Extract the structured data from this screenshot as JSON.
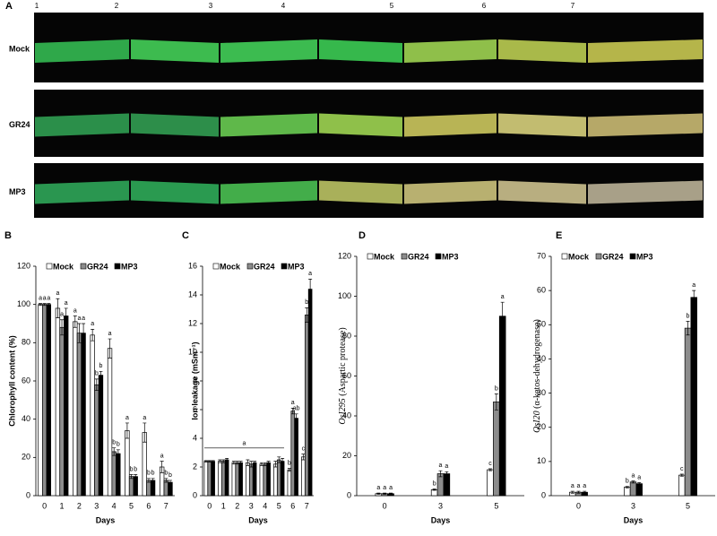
{
  "photo_panel": {
    "panel_label": "A",
    "columns": [
      "1",
      "2",
      "3",
      "4",
      "5",
      "6",
      "7"
    ],
    "rows": [
      "Mock",
      "GR24",
      "MP3"
    ]
  },
  "chart_data": [
    {
      "type": "bar",
      "panel_label": "B",
      "ylabel": "Chlorophyll content (%)",
      "xlabel": "Days",
      "categories": [
        "0",
        "1",
        "2",
        "3",
        "4",
        "5",
        "6",
        "7"
      ],
      "series": [
        {
          "name": "Mock",
          "color": "#ffffff",
          "values": [
            100,
            98,
            91,
            84,
            77,
            34,
            33,
            15
          ],
          "errors": [
            0.5,
            5,
            3,
            3,
            5,
            4,
            5,
            3
          ],
          "letters": [
            "a",
            "a",
            "a",
            "a",
            "a",
            "a",
            "a",
            "a"
          ]
        },
        {
          "name": "GR24",
          "color": "#8c8c8c",
          "values": [
            100,
            88,
            85,
            58,
            23,
            10,
            8,
            8
          ],
          "errors": [
            0.5,
            4,
            5,
            3,
            2,
            1,
            1,
            1
          ],
          "letters": [
            "a",
            "a",
            "a",
            "b",
            "b",
            "b",
            "b",
            "b"
          ]
        },
        {
          "name": "MP3",
          "color": "#000000",
          "values": [
            100,
            94,
            85,
            63,
            22,
            10,
            8,
            7
          ],
          "errors": [
            0.5,
            4,
            5,
            2,
            2,
            1,
            1,
            1
          ],
          "letters": [
            "a",
            "a",
            "a",
            "b",
            "b",
            "b",
            "b",
            "b"
          ]
        }
      ],
      "ylim": [
        0,
        120
      ],
      "yticks": [
        0,
        20,
        40,
        60,
        80,
        100,
        120
      ],
      "legend": "top-left"
    },
    {
      "type": "bar",
      "panel_label": "C",
      "ylabel": "Ion leakage (mSm⁻¹)",
      "xlabel": "Days",
      "categories": [
        "0",
        "1",
        "2",
        "3",
        "4",
        "5",
        "6",
        "7"
      ],
      "series": [
        {
          "name": "Mock",
          "color": "#ffffff",
          "values": [
            2.4,
            2.4,
            2.3,
            2.3,
            2.2,
            2.2,
            1.8,
            2.7
          ],
          "errors": [
            0.05,
            0.1,
            0.1,
            0.2,
            0.1,
            0.2,
            0.1,
            0.2
          ],
          "letters": [
            null,
            null,
            null,
            null,
            null,
            null,
            "b",
            "c"
          ]
        },
        {
          "name": "GR24",
          "color": "#8c8c8c",
          "values": [
            2.4,
            2.4,
            2.3,
            2.2,
            2.2,
            2.5,
            5.9,
            12.6
          ],
          "errors": [
            0.05,
            0.1,
            0.1,
            0.2,
            0.1,
            0.2,
            0.2,
            0.5
          ],
          "letters": [
            null,
            null,
            null,
            null,
            null,
            null,
            "a",
            "b"
          ]
        },
        {
          "name": "MP3",
          "color": "#000000",
          "values": [
            2.4,
            2.5,
            2.3,
            2.3,
            2.3,
            2.4,
            5.4,
            14.4
          ],
          "errors": [
            0.05,
            0.1,
            0.1,
            0.1,
            0.1,
            0.2,
            0.3,
            0.7
          ],
          "letters": [
            null,
            null,
            null,
            null,
            null,
            null,
            "ab",
            "a"
          ]
        }
      ],
      "bracket_label": "a",
      "ylim": [
        0,
        16
      ],
      "yticks": [
        0,
        2,
        4,
        6,
        8,
        10,
        12,
        14,
        16
      ],
      "legend": "top-left"
    },
    {
      "type": "bar",
      "panel_label": "D",
      "ylabel": "OsI295",
      "ylabel_detail": "(Aspartic protease)",
      "xlabel": "Days",
      "categories": [
        "0",
        "3",
        "5"
      ],
      "series": [
        {
          "name": "Mock",
          "color": "#ffffff",
          "values": [
            1,
            3,
            13
          ],
          "errors": [
            0.3,
            0.3,
            0.5
          ],
          "letters": [
            "a",
            "b",
            "c"
          ]
        },
        {
          "name": "GR24",
          "color": "#8c8c8c",
          "values": [
            1,
            11,
            47
          ],
          "errors": [
            0.3,
            1.5,
            4
          ],
          "letters": [
            "a",
            "a",
            "b"
          ]
        },
        {
          "name": "MP3",
          "color": "#000000",
          "values": [
            1,
            11,
            90
          ],
          "errors": [
            0.3,
            1,
            7
          ],
          "letters": [
            "a",
            "a",
            "a"
          ]
        }
      ],
      "ylim": [
        0,
        120
      ],
      "yticks": [
        0,
        20,
        40,
        60,
        80,
        100,
        120
      ],
      "legend": "top-left"
    },
    {
      "type": "bar",
      "panel_label": "E",
      "ylabel": "OsI20",
      "ylabel_detail": "(α-ketos-dehydrogenase)",
      "xlabel": "Days",
      "categories": [
        "0",
        "3",
        "5"
      ],
      "series": [
        {
          "name": "Mock",
          "color": "#ffffff",
          "values": [
            1,
            2.5,
            6
          ],
          "errors": [
            0.3,
            0.2,
            0.3
          ],
          "letters": [
            "a",
            "b",
            "c"
          ]
        },
        {
          "name": "GR24",
          "color": "#8c8c8c",
          "values": [
            1,
            4,
            49
          ],
          "errors": [
            0.3,
            0.3,
            2
          ],
          "letters": [
            "a",
            "a",
            "b"
          ]
        },
        {
          "name": "MP3",
          "color": "#000000",
          "values": [
            1,
            3.5,
            58
          ],
          "errors": [
            0.3,
            0.3,
            2
          ],
          "letters": [
            "a",
            "a",
            "a"
          ]
        }
      ],
      "ylim": [
        0,
        70
      ],
      "yticks": [
        0,
        10,
        20,
        30,
        40,
        50,
        60,
        70
      ],
      "legend": "top-left"
    }
  ]
}
